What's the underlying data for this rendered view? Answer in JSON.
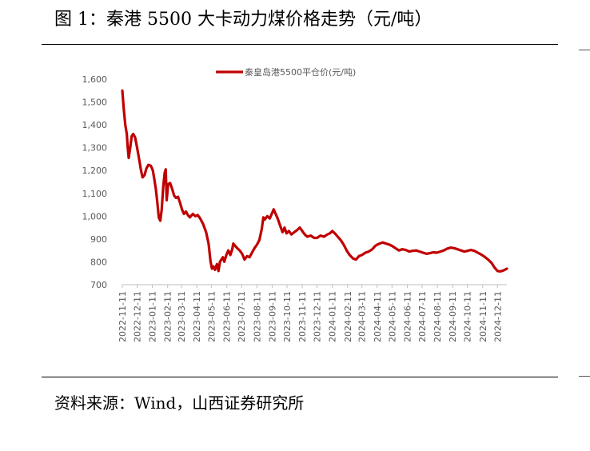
{
  "header": {
    "title": "图 1：秦港 5500 大卡动力煤价格走势（元/吨）"
  },
  "footer": {
    "source": "资料来源：Wind，山西证券研究所"
  },
  "colors": {
    "series": "#C00000",
    "axis": "#bfbfbf",
    "text": "#595959"
  },
  "chart_data": {
    "type": "line",
    "title": "",
    "xlabel": "",
    "ylabel": "",
    "ylim": [
      700,
      1600
    ],
    "yticks": [
      700,
      800,
      900,
      "1,000",
      "1,100",
      "1,200",
      "1,300",
      "1,400",
      "1,500",
      "1,600"
    ],
    "xticks": [
      "2022-11-11",
      "2022-12-11",
      "2023-01-11",
      "2023-02-11",
      "2023-03-11",
      "2023-04-11",
      "2023-05-11",
      "2023-06-11",
      "2023-07-11",
      "2023-08-11",
      "2023-09-11",
      "2023-10-11",
      "2023-11-11",
      "2023-12-11",
      "2024-01-11",
      "2024-02-11",
      "2024-03-11",
      "2024-04-11",
      "2024-05-11",
      "2024-06-11",
      "2024-07-11",
      "2024-08-11",
      "2024-09-11",
      "2024-10-11",
      "2024-11-11",
      "2024-12-11"
    ],
    "legend_position": "top-center",
    "grid": false,
    "series": [
      {
        "name": "秦皇岛港5500平仓价(元/吨)",
        "points": [
          [
            "2022-11-11",
            1550
          ],
          [
            "2022-11-14",
            1470
          ],
          [
            "2022-11-17",
            1400
          ],
          [
            "2022-11-20",
            1360
          ],
          [
            "2022-11-22",
            1300
          ],
          [
            "2022-11-24",
            1255
          ],
          [
            "2022-11-27",
            1300
          ],
          [
            "2022-11-30",
            1350
          ],
          [
            "2022-12-03",
            1360
          ],
          [
            "2022-12-07",
            1345
          ],
          [
            "2022-12-11",
            1300
          ],
          [
            "2022-12-15",
            1250
          ],
          [
            "2022-12-19",
            1200
          ],
          [
            "2022-12-22",
            1170
          ],
          [
            "2022-12-26",
            1180
          ],
          [
            "2022-12-30",
            1210
          ],
          [
            "2023-01-03",
            1225
          ],
          [
            "2023-01-08",
            1220
          ],
          [
            "2023-01-12",
            1200
          ],
          [
            "2023-01-15",
            1160
          ],
          [
            "2023-01-18",
            1120
          ],
          [
            "2023-01-21",
            1060
          ],
          [
            "2023-01-24",
            995
          ],
          [
            "2023-01-27",
            980
          ],
          [
            "2023-01-30",
            1030
          ],
          [
            "2023-02-02",
            1130
          ],
          [
            "2023-02-05",
            1190
          ],
          [
            "2023-02-07",
            1205
          ],
          [
            "2023-02-09",
            1070
          ],
          [
            "2023-02-12",
            1140
          ],
          [
            "2023-02-16",
            1145
          ],
          [
            "2023-02-20",
            1120
          ],
          [
            "2023-02-24",
            1090
          ],
          [
            "2023-02-28",
            1080
          ],
          [
            "2023-03-04",
            1085
          ],
          [
            "2023-03-08",
            1060
          ],
          [
            "2023-03-12",
            1030
          ],
          [
            "2023-03-16",
            1010
          ],
          [
            "2023-03-20",
            1020
          ],
          [
            "2023-03-24",
            1005
          ],
          [
            "2023-03-28",
            995
          ],
          [
            "2023-04-03",
            1010
          ],
          [
            "2023-04-08",
            1000
          ],
          [
            "2023-04-13",
            1005
          ],
          [
            "2023-04-18",
            990
          ],
          [
            "2023-04-24",
            965
          ],
          [
            "2023-04-30",
            930
          ],
          [
            "2023-05-05",
            880
          ],
          [
            "2023-05-09",
            800
          ],
          [
            "2023-05-12",
            770
          ],
          [
            "2023-05-15",
            780
          ],
          [
            "2023-05-18",
            765
          ],
          [
            "2023-05-22",
            790
          ],
          [
            "2023-05-25",
            760
          ],
          [
            "2023-05-28",
            800
          ],
          [
            "2023-05-31",
            810
          ],
          [
            "2023-06-03",
            820
          ],
          [
            "2023-06-06",
            800
          ],
          [
            "2023-06-10",
            830
          ],
          [
            "2023-06-14",
            850
          ],
          [
            "2023-06-18",
            830
          ],
          [
            "2023-06-22",
            855
          ],
          [
            "2023-06-24",
            880
          ],
          [
            "2023-06-28",
            870
          ],
          [
            "2023-07-02",
            860
          ],
          [
            "2023-07-07",
            850
          ],
          [
            "2023-07-12",
            835
          ],
          [
            "2023-07-17",
            810
          ],
          [
            "2023-07-22",
            825
          ],
          [
            "2023-07-27",
            820
          ],
          [
            "2023-08-01",
            840
          ],
          [
            "2023-08-06",
            860
          ],
          [
            "2023-08-11",
            875
          ],
          [
            "2023-08-16",
            895
          ],
          [
            "2023-08-21",
            945
          ],
          [
            "2023-08-24",
            995
          ],
          [
            "2023-08-27",
            985
          ],
          [
            "2023-09-01",
            1000
          ],
          [
            "2023-09-06",
            990
          ],
          [
            "2023-09-11",
            1015
          ],
          [
            "2023-09-14",
            1030
          ],
          [
            "2023-09-18",
            1010
          ],
          [
            "2023-09-22",
            990
          ],
          [
            "2023-09-27",
            960
          ],
          [
            "2023-10-02",
            930
          ],
          [
            "2023-10-06",
            950
          ],
          [
            "2023-10-10",
            925
          ],
          [
            "2023-10-15",
            935
          ],
          [
            "2023-10-20",
            920
          ],
          [
            "2023-10-26",
            930
          ],
          [
            "2023-11-01",
            940
          ],
          [
            "2023-11-06",
            950
          ],
          [
            "2023-11-11",
            935
          ],
          [
            "2023-11-16",
            920
          ],
          [
            "2023-11-21",
            910
          ],
          [
            "2023-11-28",
            915
          ],
          [
            "2023-12-05",
            905
          ],
          [
            "2023-12-11",
            905
          ],
          [
            "2023-12-18",
            915
          ],
          [
            "2023-12-25",
            910
          ],
          [
            "2024-01-01",
            920
          ],
          [
            "2024-01-06",
            925
          ],
          [
            "2024-01-11",
            935
          ],
          [
            "2024-01-16",
            925
          ],
          [
            "2024-01-22",
            910
          ],
          [
            "2024-01-28",
            895
          ],
          [
            "2024-02-03",
            875
          ],
          [
            "2024-02-09",
            850
          ],
          [
            "2024-02-15",
            830
          ],
          [
            "2024-02-22",
            815
          ],
          [
            "2024-02-28",
            810
          ],
          [
            "2024-03-05",
            825
          ],
          [
            "2024-03-11",
            830
          ],
          [
            "2024-03-18",
            840
          ],
          [
            "2024-03-25",
            845
          ],
          [
            "2024-04-01",
            855
          ],
          [
            "2024-04-07",
            870
          ],
          [
            "2024-04-11",
            875
          ],
          [
            "2024-04-16",
            880
          ],
          [
            "2024-04-22",
            885
          ],
          [
            "2024-04-29",
            880
          ],
          [
            "2024-05-06",
            875
          ],
          [
            "2024-05-11",
            870
          ],
          [
            "2024-05-18",
            860
          ],
          [
            "2024-05-25",
            850
          ],
          [
            "2024-06-01",
            855
          ],
          [
            "2024-06-08",
            852
          ],
          [
            "2024-06-15",
            845
          ],
          [
            "2024-06-22",
            848
          ],
          [
            "2024-06-29",
            850
          ],
          [
            "2024-07-06",
            845
          ],
          [
            "2024-07-13",
            840
          ],
          [
            "2024-07-20",
            835
          ],
          [
            "2024-07-27",
            838
          ],
          [
            "2024-08-03",
            842
          ],
          [
            "2024-08-10",
            840
          ],
          [
            "2024-08-17",
            845
          ],
          [
            "2024-08-24",
            850
          ],
          [
            "2024-08-31",
            858
          ],
          [
            "2024-09-07",
            862
          ],
          [
            "2024-09-14",
            860
          ],
          [
            "2024-09-21",
            855
          ],
          [
            "2024-09-28",
            850
          ],
          [
            "2024-10-05",
            845
          ],
          [
            "2024-10-11",
            848
          ],
          [
            "2024-10-18",
            852
          ],
          [
            "2024-10-25",
            848
          ],
          [
            "2024-11-01",
            840
          ],
          [
            "2024-11-08",
            832
          ],
          [
            "2024-11-15",
            822
          ],
          [
            "2024-11-22",
            810
          ],
          [
            "2024-11-29",
            795
          ],
          [
            "2024-12-05",
            775
          ],
          [
            "2024-12-11",
            760
          ],
          [
            "2024-12-17",
            758
          ],
          [
            "2024-12-24",
            763
          ],
          [
            "2024-12-30",
            770
          ]
        ]
      }
    ]
  }
}
